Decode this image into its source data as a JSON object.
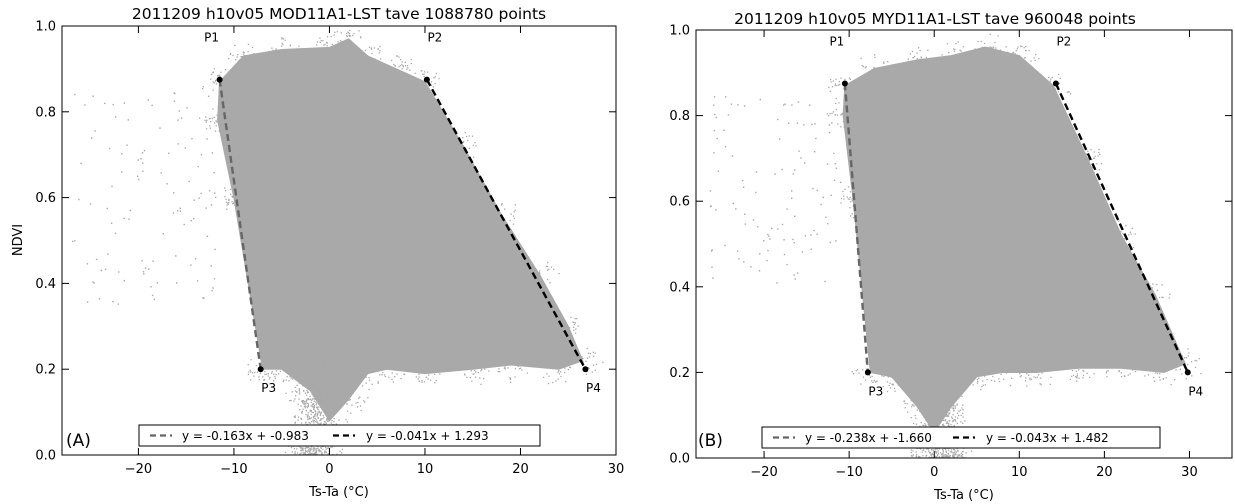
{
  "chart_data": [
    {
      "type": "scatter",
      "panel_label": "(A)",
      "title": "2011209 h10v05 MOD11A1-LST tave 1088780 points",
      "xlabel": "Ts-Ta (°C)",
      "ylabel": "NDVI",
      "xlim": [
        -28,
        30
      ],
      "ylim": [
        0.0,
        1.0
      ],
      "xticks": [
        -20,
        -10,
        0,
        10,
        20,
        30
      ],
      "yticks": [
        0.0,
        0.2,
        0.4,
        0.6,
        0.8,
        1.0
      ],
      "xtick_labels": [
        "−20",
        "−10",
        "0",
        "10",
        "20",
        "30"
      ],
      "ytick_labels": [
        "0.0",
        "0.2",
        "0.4",
        "0.6",
        "0.8",
        "1.0"
      ],
      "grid": false,
      "scatter_color": "#a9a9a9",
      "cloud_outline": [
        [
          -11.5,
          0.87
        ],
        [
          -9,
          0.93
        ],
        [
          -5,
          0.945
        ],
        [
          0,
          0.95
        ],
        [
          2,
          0.97
        ],
        [
          4,
          0.93
        ],
        [
          7,
          0.9
        ],
        [
          10,
          0.87
        ],
        [
          14,
          0.72
        ],
        [
          18,
          0.56
        ],
        [
          22,
          0.42
        ],
        [
          25,
          0.3
        ],
        [
          26.5,
          0.22
        ],
        [
          24,
          0.2
        ],
        [
          19,
          0.21
        ],
        [
          15,
          0.2
        ],
        [
          10,
          0.19
        ],
        [
          6,
          0.2
        ],
        [
          4,
          0.19
        ],
        [
          2,
          0.13
        ],
        [
          0,
          0.08
        ],
        [
          -2,
          0.15
        ],
        [
          -5,
          0.2
        ],
        [
          -7,
          0.2
        ],
        [
          -10,
          0.6
        ],
        [
          -11.7,
          0.78
        ]
      ],
      "plume": {
        "x_center": -1.5,
        "x_spread": 2.0,
        "y_range": [
          0.0,
          0.3
        ]
      },
      "sparse_region": {
        "x_range": [
          -27,
          -12
        ],
        "y_range": [
          0.35,
          0.85
        ]
      },
      "dry_edge_lines": [
        {
          "equation": "y = -0.163x + -0.983",
          "from": [
            -11.5,
            0.875
          ],
          "to": [
            -7.2,
            0.2
          ],
          "color": "#666666",
          "start_label": "P1",
          "end_label": "P3"
        },
        {
          "equation": "y = -0.041x + 1.293",
          "from": [
            10.2,
            0.875
          ],
          "to": [
            26.8,
            0.2
          ],
          "color": "#000000",
          "start_label": "P2",
          "end_label": "P4"
        }
      ],
      "legend_placement": "bottom-center"
    },
    {
      "type": "scatter",
      "panel_label": "(B)",
      "title": "2011209 h10v05 MYD11A1-LST tave 960048 points",
      "xlabel": "Ts-Ta (°C)",
      "ylabel": "",
      "xlim": [
        -28,
        35
      ],
      "ylim": [
        0.0,
        1.0
      ],
      "xticks": [
        -20,
        -10,
        0,
        10,
        20,
        30
      ],
      "yticks": [
        0.0,
        0.2,
        0.4,
        0.6,
        0.8,
        1.0
      ],
      "xtick_labels": [
        "−20",
        "−10",
        "0",
        "10",
        "20",
        "30"
      ],
      "ytick_labels": [
        "0.0",
        "0.2",
        "0.4",
        "0.6",
        "0.8",
        "1.0"
      ],
      "grid": false,
      "scatter_color": "#a9a9a9",
      "cloud_outline": [
        [
          -10.5,
          0.87
        ],
        [
          -7,
          0.91
        ],
        [
          -2,
          0.93
        ],
        [
          2,
          0.94
        ],
        [
          6,
          0.96
        ],
        [
          10,
          0.94
        ],
        [
          14,
          0.87
        ],
        [
          18,
          0.7
        ],
        [
          22,
          0.52
        ],
        [
          26,
          0.38
        ],
        [
          29.5,
          0.22
        ],
        [
          27,
          0.2
        ],
        [
          22,
          0.21
        ],
        [
          17,
          0.21
        ],
        [
          12,
          0.2
        ],
        [
          8,
          0.2
        ],
        [
          5,
          0.19
        ],
        [
          2,
          0.12
        ],
        [
          0,
          0.06
        ],
        [
          -2,
          0.12
        ],
        [
          -5,
          0.19
        ],
        [
          -7.5,
          0.2
        ],
        [
          -9.5,
          0.6
        ],
        [
          -10.7,
          0.8
        ]
      ],
      "plume": {
        "x_center": 0.5,
        "x_spread": 2.2,
        "y_range": [
          0.0,
          0.3
        ]
      },
      "sparse_region": {
        "x_range": [
          -27,
          -11
        ],
        "y_range": [
          0.4,
          0.85
        ]
      },
      "dry_edge_lines": [
        {
          "equation": "y = -0.238x + -1.660",
          "from": [
            -10.5,
            0.875
          ],
          "to": [
            -7.8,
            0.2
          ],
          "color": "#666666",
          "start_label": "P1",
          "end_label": "P3"
        },
        {
          "equation": "y = -0.043x + 1.482",
          "from": [
            14.3,
            0.875
          ],
          "to": [
            29.8,
            0.2
          ],
          "color": "#000000",
          "start_label": "P2",
          "end_label": "P4"
        }
      ],
      "legend_placement": "bottom-center"
    }
  ]
}
